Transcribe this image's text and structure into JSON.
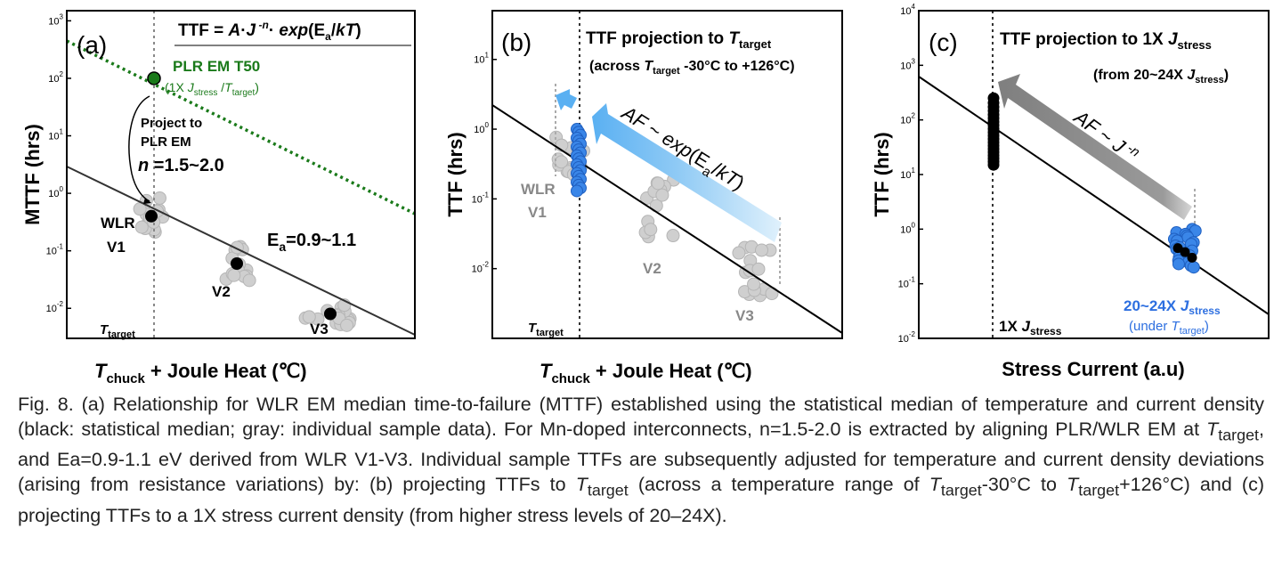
{
  "chart_data": [
    {
      "type": "scatter",
      "panel_label": "(a)",
      "equation": {
        "lhs": "TTF = ",
        "A": "A",
        "dot1": "·",
        "J": "J",
        "exp_n": " -n",
        "dot2": "·",
        "expword": " exp",
        "open": "(",
        "E": "E",
        "a_sub": "a",
        "slash": "/",
        "kT": "kT",
        "close": ")"
      },
      "ylabel": "MTTF (hrs)",
      "xlabel": {
        "T": "T",
        "sub": "chuck",
        "rest": " + Joule Heat (℃)"
      },
      "y_ticks": [
        {
          "base": "10",
          "exp": "3"
        },
        {
          "base": "10",
          "exp": "2"
        },
        {
          "base": "10",
          "exp": "1"
        },
        {
          "base": "10",
          "exp": "0"
        },
        {
          "base": "10",
          "exp": "-1"
        },
        {
          "base": "10",
          "exp": "-2"
        }
      ],
      "ylim": [
        0.003,
        1500
      ],
      "target_label": {
        "T": "T",
        "sub": "target"
      },
      "annotations": {
        "plr_title": "PLR EM T50",
        "plr_sub": {
          "open": "(1X ",
          "J": "J",
          "jsub": "stress",
          "slash": " /",
          "T": "T",
          "tsub": "target",
          "close": ")"
        },
        "project_line1": "Project to",
        "project_line2": "PLR EM",
        "n_text": {
          "n": "n",
          "rest": " =1.5~2.0"
        },
        "ea_text": {
          "E": "E",
          "sub": "a",
          "rest": "=0.9~1.1"
        },
        "wlr": "WLR",
        "v1": "V1",
        "v2": "V2",
        "v3": "V3"
      },
      "series": [
        {
          "name": "statistical median",
          "points": [
            {
              "group": "V1",
              "y": 0.4
            },
            {
              "group": "V2",
              "y": 0.06
            },
            {
              "group": "V3",
              "y": 0.008
            }
          ]
        },
        {
          "name": "PLR EM T50",
          "points": [
            {
              "group": "target",
              "y": 100
            }
          ]
        }
      ]
    },
    {
      "type": "scatter",
      "panel_label": "(b)",
      "title": {
        "main": "TTF projection to ",
        "T": "T",
        "sub": "target"
      },
      "subtitle": {
        "open": "(across ",
        "T": "T",
        "sub": "target",
        "rest": " -30°C to +126°C)"
      },
      "ylabel": "TTF (hrs)",
      "xlabel": {
        "T": "T",
        "sub": "chuck",
        "rest": " + Joule Heat (℃)"
      },
      "y_ticks": [
        {
          "base": "10",
          "exp": "1"
        },
        {
          "base": "10",
          "exp": "0"
        },
        {
          "base": "10",
          "exp": "-1"
        },
        {
          "base": "10",
          "exp": "-2"
        }
      ],
      "ylim": [
        0.001,
        50
      ],
      "target_label": {
        "T": "T",
        "sub": "target"
      },
      "arrow_label": {
        "AF": "AF",
        "rest": " ~ ",
        "exp": "exp",
        "open": "(",
        "E": "E",
        "a": "a",
        "slash": "/",
        "kT": "kT",
        "close": ")"
      },
      "annotations": {
        "wlr": "WLR",
        "v1": "V1",
        "v2": "V2",
        "v3": "V3"
      },
      "series": [
        {
          "name": "individual samples (gray)",
          "groups": [
            "V1",
            "V2",
            "V3"
          ]
        },
        {
          "name": "projected to T_target (blue)",
          "range": [
            0.13,
            1.0
          ]
        }
      ]
    },
    {
      "type": "scatter",
      "panel_label": "(c)",
      "title": {
        "main": "TTF projection to 1X ",
        "J": "J",
        "sub": "stress"
      },
      "subtitle": {
        "open": "(from 20~24X ",
        "J": "J",
        "sub": "stress",
        "close": ")"
      },
      "ylabel": "TTF (hrs)",
      "xlabel": "Stress Current (a.u)",
      "y_ticks": [
        {
          "base": "10",
          "exp": "4"
        },
        {
          "base": "10",
          "exp": "3"
        },
        {
          "base": "10",
          "exp": "2"
        },
        {
          "base": "10",
          "exp": "1"
        },
        {
          "base": "10",
          "exp": "0"
        },
        {
          "base": "10",
          "exp": "-1"
        },
        {
          "base": "10",
          "exp": "-2"
        }
      ],
      "ylim": [
        0.01,
        10000
      ],
      "arrow_label": {
        "AF": "AF",
        "rest": " ~ ",
        "J": "J",
        "exp": " -n"
      },
      "annotations": {
        "onex": {
          "pre": "1X ",
          "J": "J",
          "sub": "stress"
        },
        "hi_line1": {
          "pre": "20~24X ",
          "J": "J",
          "sub": "stress"
        },
        "hi_line2": {
          "open": "(under ",
          "T": "T",
          "sub": "target",
          "close": ")"
        }
      },
      "series": [
        {
          "name": "projected to 1X J_stress",
          "range": [
            15,
            250
          ]
        },
        {
          "name": "20~24X J_stress (blue)",
          "range": [
            0.2,
            1.0
          ]
        }
      ]
    }
  ],
  "caption": {
    "c1": "Fig. 8. (a) Relationship for WLR EM median time-to-failure (MTTF) established using the statistical median of temperature and current density (black: statistical median; gray: individual sample data). For Mn-doped interconnects, n=1.5-2.0 is extracted by aligning PLR/WLR EM at ",
    "t1": "T",
    "s1": "target",
    "c2": ", and Ea=0.9-1.1 eV derived from WLR V1-V3. Individual sample TTFs are subsequently adjusted for temperature and current density deviations (arising from resistance variations) by: (b) projecting TTFs to ",
    "t2": "T",
    "s2": "target",
    "c3": " (across a temperature range of ",
    "t3": "T",
    "s3": "target",
    "c4": "-30°C to ",
    "t4": "T",
    "s4": "target",
    "c5": "+126°C) and (c) projecting TTFs to a 1X stress current density (from higher stress levels of 20–24X)."
  },
  "colors": {
    "green": "#1a7a1a",
    "blue_marker": "#3a86e8",
    "blue_text": "#2d6fe0",
    "gray_marker": "#cfcfcf",
    "arrow_gray": "#8c8c8c"
  }
}
